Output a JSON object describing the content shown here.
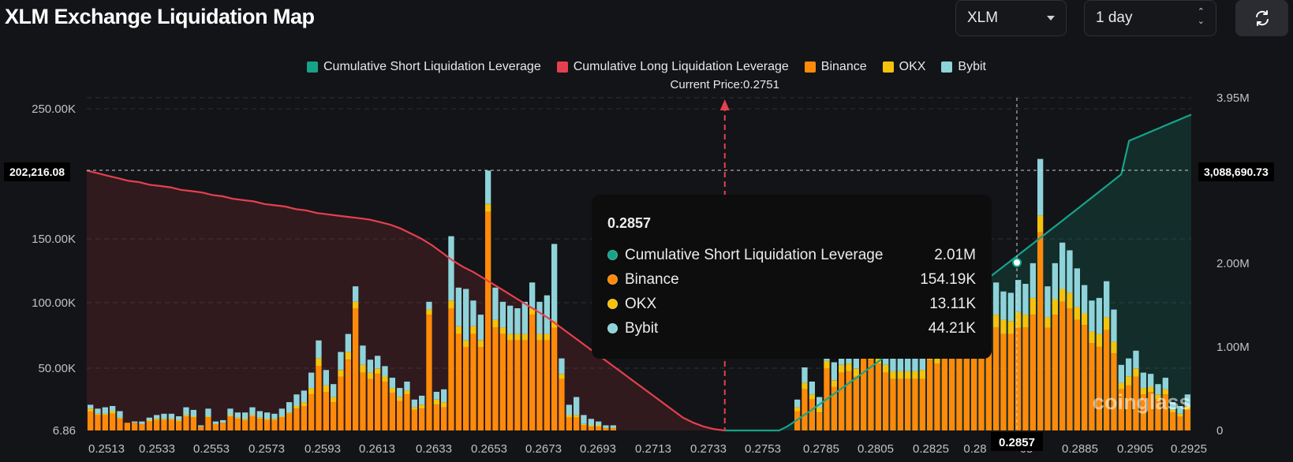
{
  "header": {
    "title": "XLM Exchange Liquidation Map",
    "coin_select": "XLM",
    "period_select": "1 day",
    "refresh_icon": "refresh-icon"
  },
  "legend": [
    {
      "label": "Cumulative Short Liquidation Leverage",
      "color": "#16a38a"
    },
    {
      "label": "Cumulative Long Liquidation Leverage",
      "color": "#e5404f"
    },
    {
      "label": "Binance",
      "color": "#ff8a0a"
    },
    {
      "label": "OKX",
      "color": "#f5c20c"
    },
    {
      "label": "Bybit",
      "color": "#8fd3da"
    }
  ],
  "current_price_label": "Current Price:0.2751",
  "crosshair": {
    "left_value": "202,216.08",
    "right_value": "3,088,690.73",
    "x_value": "0.2857"
  },
  "tooltip": {
    "title": "0.2857",
    "rows": [
      {
        "name": "Cumulative Short Liquidation Leverage",
        "value": "2.01M",
        "color": "#16a38a"
      },
      {
        "name": "Binance",
        "value": "154.19K",
        "color": "#ff8a0a"
      },
      {
        "name": "OKX",
        "value": "13.11K",
        "color": "#f5c20c"
      },
      {
        "name": "Bybit",
        "value": "44.21K",
        "color": "#8fd3da"
      }
    ]
  },
  "watermark": "coinglass",
  "chart_data": {
    "type": "bar",
    "left_axis_ticks": [
      "250.00K",
      "150.00K",
      "100.00K",
      "50.00K",
      "6.86"
    ],
    "right_axis_ticks": [
      "3.95M",
      "2.00M",
      "1.00M",
      "0"
    ],
    "x_tick_labels": [
      "0.2513",
      "0.2533",
      "0.2553",
      "0.2573",
      "0.2593",
      "0.2613",
      "0.2633",
      "0.2653",
      "0.2673",
      "0.2693",
      "0.2713",
      "0.2733",
      "0.2753",
      "0.2785",
      "0.2805",
      "0.2825",
      "0.28",
      "65",
      "0.2885",
      "0.2905",
      "0.2925"
    ],
    "x_range": [
      0.2513,
      0.2925
    ],
    "current_price": 0.2751,
    "left_ylim": [
      6.86,
      250000
    ],
    "right_ylim": [
      0,
      3950000
    ],
    "stacked_series": [
      {
        "name": "Binance",
        "color": "#ff8a0a",
        "values": [
          15,
          12,
          12,
          13,
          9,
          6,
          6,
          5,
          7,
          8,
          8,
          8,
          7,
          11,
          10,
          3,
          10,
          5,
          6,
          11,
          9,
          8,
          11,
          9,
          8,
          8,
          10,
          13,
          17,
          19,
          28,
          50,
          30,
          22,
          42,
          55,
          95,
          45,
          40,
          44,
          38,
          29,
          23,
          28,
          16,
          17,
          90,
          20,
          18,
          95,
          75,
          65,
          75,
          65,
          170,
          80,
          75,
          70,
          70,
          70,
          90,
          70,
          70,
          80,
          40,
          10,
          10,
          4,
          3,
          3,
          2,
          2,
          0,
          0,
          0,
          0,
          0,
          0,
          0,
          0,
          0,
          0,
          0,
          0,
          0,
          0,
          0,
          0,
          0,
          0,
          0,
          0,
          0,
          0,
          0,
          0,
          15,
          32,
          24,
          14,
          48,
          34,
          45,
          46,
          42,
          60,
          55,
          52,
          45,
          40,
          40,
          40,
          40,
          40,
          55,
          52,
          72,
          85,
          84,
          80,
          85,
          95,
          65,
          80,
          75,
          75,
          80,
          80,
          90,
          154,
          80,
          90,
          100,
          95,
          86,
          82,
          68,
          65,
          78,
          60,
          32,
          35,
          42,
          28,
          30,
          24,
          28,
          14,
          11,
          16
        ]
      },
      {
        "name": "OKX",
        "color": "#f5c20c",
        "values": [
          2,
          1,
          1,
          2,
          1,
          0,
          0,
          0,
          1,
          1,
          1,
          1,
          1,
          1,
          1,
          0,
          1,
          0,
          0,
          1,
          1,
          1,
          1,
          1,
          1,
          1,
          1,
          1,
          2,
          3,
          5,
          6,
          5,
          4,
          5,
          6,
          5,
          6,
          5,
          4,
          4,
          4,
          3,
          3,
          2,
          3,
          4,
          4,
          4,
          6,
          6,
          5,
          6,
          5,
          6,
          6,
          5,
          5,
          5,
          5,
          5,
          5,
          5,
          5,
          4,
          2,
          2,
          1,
          1,
          1,
          0,
          0,
          0,
          0,
          0,
          0,
          0,
          0,
          0,
          0,
          0,
          0,
          0,
          0,
          0,
          0,
          0,
          0,
          0,
          0,
          0,
          0,
          0,
          0,
          0,
          0,
          3,
          5,
          4,
          4,
          6,
          5,
          6,
          6,
          6,
          8,
          7,
          7,
          6,
          6,
          6,
          6,
          6,
          7,
          9,
          8,
          10,
          12,
          11,
          10,
          12,
          13,
          12,
          10,
          11,
          10,
          12,
          10,
          13,
          13,
          8,
          12,
          10,
          12,
          10,
          9,
          9,
          10,
          10,
          9,
          5,
          7,
          6,
          5,
          4,
          4,
          4,
          2,
          2,
          3
        ]
      },
      {
        "name": "Bybit",
        "color": "#8fd3da",
        "values": [
          3,
          4,
          5,
          4,
          5,
          0,
          1,
          2,
          2,
          3,
          4,
          4,
          3,
          6,
          5,
          1,
          6,
          2,
          2,
          5,
          4,
          5,
          6,
          5,
          5,
          4,
          6,
          8,
          9,
          9,
          12,
          14,
          12,
          10,
          14,
          14,
          12,
          15,
          10,
          10,
          8,
          8,
          7,
          7,
          6,
          7,
          6,
          6,
          10,
          50,
          30,
          40,
          20,
          20,
          26,
          25,
          20,
          22,
          20,
          25,
          20,
          25,
          30,
          60,
          12,
          8,
          14,
          7,
          5,
          3,
          2,
          2,
          0,
          0,
          0,
          0,
          0,
          0,
          0,
          0,
          0,
          0,
          0,
          0,
          0,
          0,
          0,
          0,
          0,
          0,
          0,
          0,
          0,
          0,
          0,
          0,
          6,
          12,
          10,
          8,
          16,
          14,
          12,
          14,
          14,
          18,
          17,
          18,
          16,
          15,
          16,
          15,
          14,
          16,
          20,
          18,
          25,
          28,
          26,
          25,
          30,
          25,
          22,
          25,
          22,
          22,
          25,
          24,
          27,
          44,
          24,
          28,
          36,
          33,
          30,
          22,
          24,
          28,
          28,
          25,
          14,
          14,
          14,
          12,
          10,
          8,
          9,
          6,
          6,
          9
        ]
      }
    ],
    "bar_units": "thousands",
    "long_cumulative_K": [
      202,
      200,
      198,
      196,
      194,
      193,
      191,
      190,
      189,
      187,
      186,
      185,
      183,
      182,
      180,
      179,
      178,
      176,
      175,
      174,
      172,
      171,
      169,
      168,
      167,
      166,
      165,
      164,
      162,
      160,
      157,
      153,
      149,
      144,
      138,
      132,
      127,
      123,
      118,
      113,
      108,
      103,
      98,
      93,
      88,
      82,
      76,
      70,
      64,
      58,
      52,
      46,
      40,
      34,
      28,
      22,
      16,
      10,
      6,
      3,
      1,
      0
    ]
  }
}
